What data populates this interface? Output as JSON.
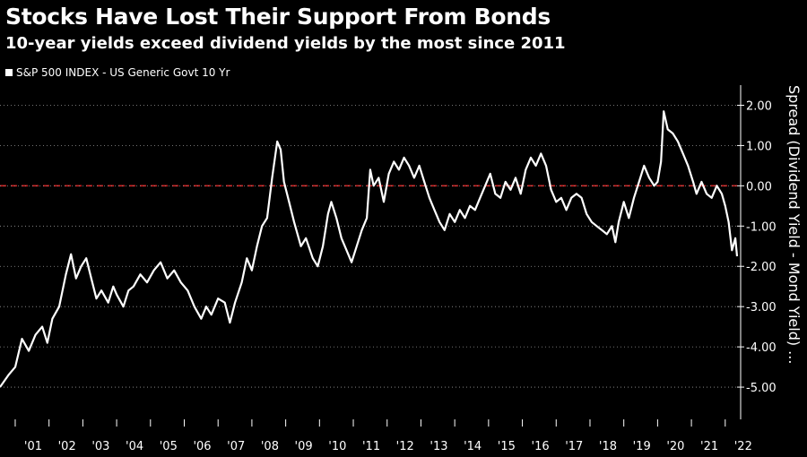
{
  "chart_data": {
    "type": "line",
    "title": "Stocks Have Lost Their Support From Bonds",
    "subtitle": "10-year yields exceed dividend yields by the most since 2011",
    "legend": [
      "S&P 500 INDEX - US Generic Govt 10 Yr"
    ],
    "ylabel": "Spread (Dividend Yield - Mond Yield) ...",
    "ylim": [
      -5.8,
      2.5
    ],
    "xlim": [
      2000.55,
      2022.35
    ],
    "x_ticks": [
      {
        "year": 2001.0,
        "label": "'01"
      },
      {
        "year": 2002.0,
        "label": "'02"
      },
      {
        "year": 2003.0,
        "label": "'03"
      },
      {
        "year": 2004.0,
        "label": "'04"
      },
      {
        "year": 2005.0,
        "label": "'05"
      },
      {
        "year": 2006.0,
        "label": "'06"
      },
      {
        "year": 2007.0,
        "label": "'07"
      },
      {
        "year": 2008.0,
        "label": "'08"
      },
      {
        "year": 2009.0,
        "label": "'09"
      },
      {
        "year": 2010.0,
        "label": "'10"
      },
      {
        "year": 2011.0,
        "label": "'11"
      },
      {
        "year": 2012.0,
        "label": "'12"
      },
      {
        "year": 2013.0,
        "label": "'13"
      },
      {
        "year": 2014.0,
        "label": "'14"
      },
      {
        "year": 2015.0,
        "label": "'15"
      },
      {
        "year": 2016.0,
        "label": "'16"
      },
      {
        "year": 2017.0,
        "label": "'17"
      },
      {
        "year": 2018.0,
        "label": "'18"
      },
      {
        "year": 2019.0,
        "label": "'19"
      },
      {
        "year": 2020.0,
        "label": "'20"
      },
      {
        "year": 2021.0,
        "label": "'21"
      },
      {
        "year": 2022.0,
        "label": "'22"
      }
    ],
    "y_ticks": [
      {
        "value": 2,
        "label": "2.00"
      },
      {
        "value": 1,
        "label": "1.00"
      },
      {
        "value": 0,
        "label": "0.00"
      },
      {
        "value": -1,
        "label": "-1.00"
      },
      {
        "value": -2,
        "label": "-2.00"
      },
      {
        "value": -3,
        "label": "-3.00"
      },
      {
        "value": -4,
        "label": "-4.00"
      },
      {
        "value": -5,
        "label": "-5.00"
      }
    ],
    "reference_line": {
      "value": 0,
      "style": "dashed",
      "color": "#cc2222"
    },
    "series": [
      {
        "name": "S&P 500 INDEX - US Generic Govt 10 Yr",
        "color": "#ffffff",
        "points": [
          [
            2000.55,
            -5.0
          ],
          [
            2000.8,
            -4.7
          ],
          [
            2001.0,
            -4.5
          ],
          [
            2001.2,
            -3.8
          ],
          [
            2001.4,
            -4.1
          ],
          [
            2001.6,
            -3.7
          ],
          [
            2001.8,
            -3.5
          ],
          [
            2001.95,
            -3.9
          ],
          [
            2002.1,
            -3.3
          ],
          [
            2002.3,
            -3.0
          ],
          [
            2002.5,
            -2.2
          ],
          [
            2002.65,
            -1.7
          ],
          [
            2002.8,
            -2.3
          ],
          [
            2002.95,
            -2.0
          ],
          [
            2003.1,
            -1.8
          ],
          [
            2003.25,
            -2.3
          ],
          [
            2003.4,
            -2.8
          ],
          [
            2003.55,
            -2.6
          ],
          [
            2003.75,
            -2.9
          ],
          [
            2003.9,
            -2.5
          ],
          [
            2004.0,
            -2.7
          ],
          [
            2004.2,
            -3.0
          ],
          [
            2004.35,
            -2.6
          ],
          [
            2004.5,
            -2.5
          ],
          [
            2004.7,
            -2.2
          ],
          [
            2004.9,
            -2.4
          ],
          [
            2005.1,
            -2.1
          ],
          [
            2005.3,
            -1.9
          ],
          [
            2005.5,
            -2.3
          ],
          [
            2005.7,
            -2.1
          ],
          [
            2005.9,
            -2.4
          ],
          [
            2006.1,
            -2.6
          ],
          [
            2006.3,
            -3.0
          ],
          [
            2006.5,
            -3.3
          ],
          [
            2006.65,
            -3.0
          ],
          [
            2006.8,
            -3.2
          ],
          [
            2007.0,
            -2.8
          ],
          [
            2007.2,
            -2.9
          ],
          [
            2007.35,
            -3.4
          ],
          [
            2007.5,
            -2.9
          ],
          [
            2007.7,
            -2.4
          ],
          [
            2007.85,
            -1.8
          ],
          [
            2008.0,
            -2.1
          ],
          [
            2008.15,
            -1.5
          ],
          [
            2008.3,
            -1.0
          ],
          [
            2008.45,
            -0.8
          ],
          [
            2008.6,
            0.2
          ],
          [
            2008.75,
            1.1
          ],
          [
            2008.85,
            0.9
          ],
          [
            2008.95,
            0.1
          ],
          [
            2009.1,
            -0.4
          ],
          [
            2009.25,
            -0.9
          ],
          [
            2009.45,
            -1.5
          ],
          [
            2009.6,
            -1.3
          ],
          [
            2009.8,
            -1.8
          ],
          [
            2009.95,
            -2.0
          ],
          [
            2010.1,
            -1.5
          ],
          [
            2010.25,
            -0.7
          ],
          [
            2010.35,
            -0.4
          ],
          [
            2010.5,
            -0.8
          ],
          [
            2010.65,
            -1.3
          ],
          [
            2010.8,
            -1.6
          ],
          [
            2010.95,
            -1.9
          ],
          [
            2011.1,
            -1.5
          ],
          [
            2011.25,
            -1.1
          ],
          [
            2011.4,
            -0.8
          ],
          [
            2011.5,
            0.4
          ],
          [
            2011.6,
            0.0
          ],
          [
            2011.75,
            0.2
          ],
          [
            2011.9,
            -0.4
          ],
          [
            2012.05,
            0.3
          ],
          [
            2012.2,
            0.6
          ],
          [
            2012.35,
            0.4
          ],
          [
            2012.5,
            0.7
          ],
          [
            2012.65,
            0.5
          ],
          [
            2012.8,
            0.2
          ],
          [
            2012.95,
            0.5
          ],
          [
            2013.1,
            0.1
          ],
          [
            2013.25,
            -0.3
          ],
          [
            2013.4,
            -0.6
          ],
          [
            2013.55,
            -0.9
          ],
          [
            2013.7,
            -1.1
          ],
          [
            2013.85,
            -0.7
          ],
          [
            2014.0,
            -0.9
          ],
          [
            2014.15,
            -0.6
          ],
          [
            2014.3,
            -0.8
          ],
          [
            2014.45,
            -0.5
          ],
          [
            2014.6,
            -0.6
          ],
          [
            2014.75,
            -0.3
          ],
          [
            2014.9,
            0.0
          ],
          [
            2015.05,
            0.3
          ],
          [
            2015.2,
            -0.2
          ],
          [
            2015.35,
            -0.3
          ],
          [
            2015.5,
            0.1
          ],
          [
            2015.65,
            -0.1
          ],
          [
            2015.8,
            0.2
          ],
          [
            2015.95,
            -0.2
          ],
          [
            2016.1,
            0.4
          ],
          [
            2016.25,
            0.7
          ],
          [
            2016.4,
            0.5
          ],
          [
            2016.55,
            0.8
          ],
          [
            2016.7,
            0.5
          ],
          [
            2016.85,
            -0.1
          ],
          [
            2017.0,
            -0.4
          ],
          [
            2017.15,
            -0.3
          ],
          [
            2017.3,
            -0.6
          ],
          [
            2017.45,
            -0.3
          ],
          [
            2017.6,
            -0.2
          ],
          [
            2017.75,
            -0.3
          ],
          [
            2017.9,
            -0.7
          ],
          [
            2018.05,
            -0.9
          ],
          [
            2018.2,
            -1.0
          ],
          [
            2018.35,
            -1.1
          ],
          [
            2018.5,
            -1.2
          ],
          [
            2018.65,
            -1.0
          ],
          [
            2018.75,
            -1.4
          ],
          [
            2018.85,
            -0.9
          ],
          [
            2019.0,
            -0.4
          ],
          [
            2019.15,
            -0.8
          ],
          [
            2019.3,
            -0.3
          ],
          [
            2019.45,
            0.1
          ],
          [
            2019.6,
            0.5
          ],
          [
            2019.75,
            0.2
          ],
          [
            2019.9,
            0.0
          ],
          [
            2020.0,
            0.1
          ],
          [
            2020.1,
            0.6
          ],
          [
            2020.18,
            1.85
          ],
          [
            2020.3,
            1.4
          ],
          [
            2020.45,
            1.3
          ],
          [
            2020.6,
            1.1
          ],
          [
            2020.75,
            0.8
          ],
          [
            2020.9,
            0.5
          ],
          [
            2021.05,
            0.1
          ],
          [
            2021.15,
            -0.2
          ],
          [
            2021.3,
            0.1
          ],
          [
            2021.45,
            -0.2
          ],
          [
            2021.6,
            -0.3
          ],
          [
            2021.75,
            0.0
          ],
          [
            2021.9,
            -0.2
          ],
          [
            2022.0,
            -0.5
          ],
          [
            2022.1,
            -0.9
          ],
          [
            2022.2,
            -1.6
          ],
          [
            2022.3,
            -1.3
          ],
          [
            2022.35,
            -1.75
          ]
        ]
      }
    ]
  }
}
